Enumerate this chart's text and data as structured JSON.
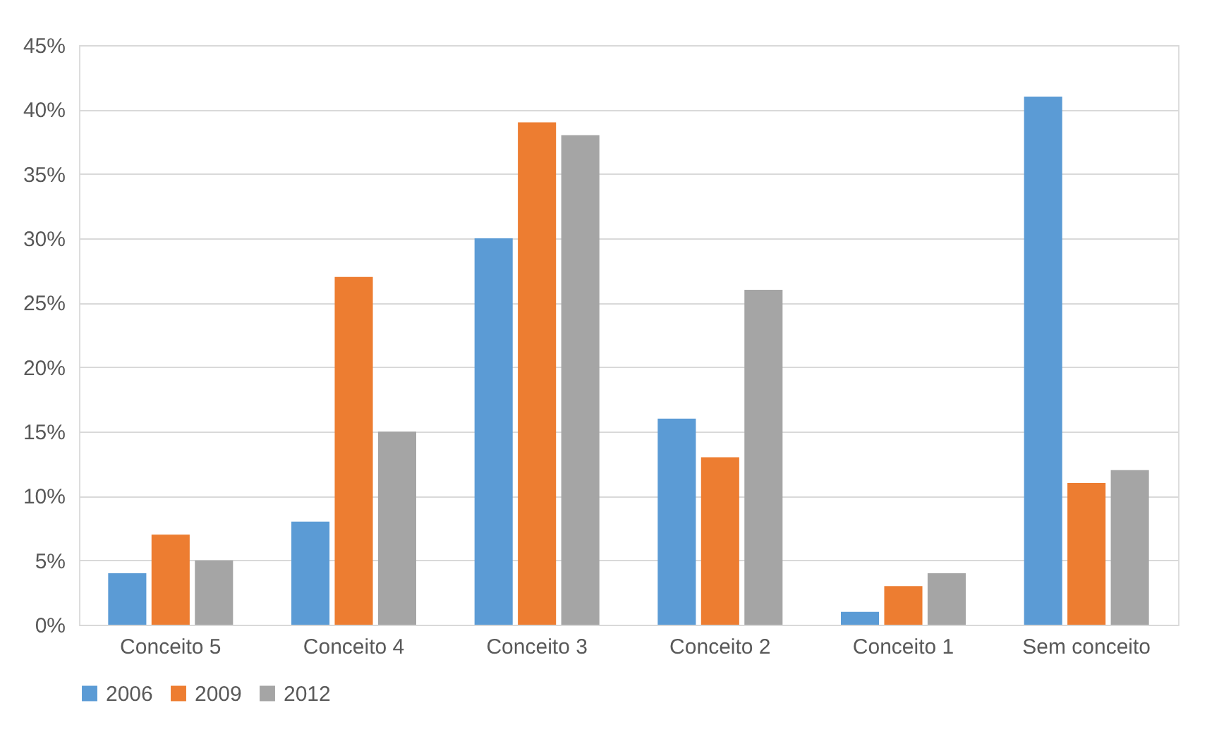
{
  "chart_data": {
    "type": "bar",
    "categories": [
      "Conceito 5",
      "Conceito 4",
      "Conceito 3",
      "Conceito 2",
      "Conceito 1",
      "Sem conceito"
    ],
    "series": [
      {
        "name": "2006",
        "color": "#5b9bd5",
        "values": [
          4,
          8,
          30,
          16,
          1,
          41
        ]
      },
      {
        "name": "2009",
        "color": "#ed7d31",
        "values": [
          7,
          27,
          39,
          13,
          3,
          11
        ]
      },
      {
        "name": "2012",
        "color": "#a5a5a5",
        "values": [
          5,
          15,
          38,
          26,
          4,
          12
        ]
      }
    ],
    "ylim": [
      0,
      45
    ],
    "yticks": [
      {
        "value": 0,
        "label": "0%"
      },
      {
        "value": 5,
        "label": "5%"
      },
      {
        "value": 10,
        "label": "10%"
      },
      {
        "value": 15,
        "label": "15%"
      },
      {
        "value": 20,
        "label": "20%"
      },
      {
        "value": 25,
        "label": "25%"
      },
      {
        "value": 30,
        "label": "30%"
      },
      {
        "value": 35,
        "label": "35%"
      },
      {
        "value": 40,
        "label": "40%"
      },
      {
        "value": 45,
        "label": "45%"
      }
    ],
    "grid": "y",
    "legend": "bottom"
  }
}
